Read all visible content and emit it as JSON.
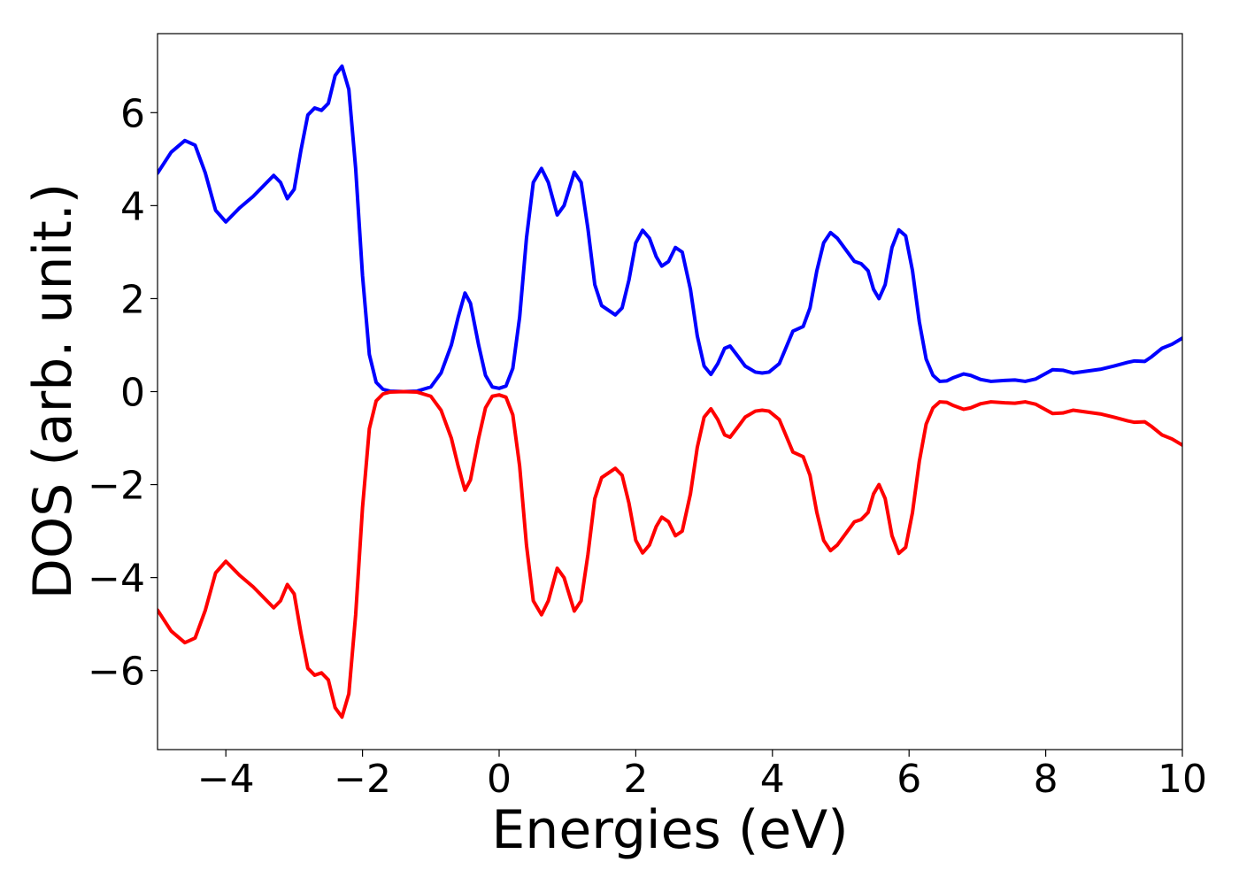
{
  "chart_data": {
    "type": "line",
    "title": "",
    "xlabel": "Energies (eV)",
    "ylabel": "DOS (arb. unit.)",
    "xlim": [
      -5,
      10
    ],
    "ylim": [
      -7.7,
      7.7
    ],
    "grid": false,
    "x_ticks": [
      -4,
      -2,
      0,
      2,
      4,
      6,
      8,
      10
    ],
    "x_tick_labels": [
      "−4",
      "−2",
      "0",
      "2",
      "4",
      "6",
      "8",
      "10"
    ],
    "y_ticks": [
      -6,
      -4,
      -2,
      0,
      2,
      4,
      6
    ],
    "y_tick_labels": [
      "−6",
      "−4",
      "−2",
      "0",
      "2",
      "4",
      "6"
    ],
    "series": [
      {
        "color": "#0000ff",
        "points": [
          [
            -5.0,
            4.7
          ],
          [
            -4.8,
            5.15
          ],
          [
            -4.6,
            5.4
          ],
          [
            -4.45,
            5.3
          ],
          [
            -4.3,
            4.7
          ],
          [
            -4.15,
            3.9
          ],
          [
            -4.0,
            3.65
          ],
          [
            -3.8,
            3.95
          ],
          [
            -3.6,
            4.2
          ],
          [
            -3.4,
            4.5
          ],
          [
            -3.3,
            4.65
          ],
          [
            -3.2,
            4.5
          ],
          [
            -3.1,
            4.15
          ],
          [
            -3.0,
            4.35
          ],
          [
            -2.9,
            5.2
          ],
          [
            -2.8,
            5.95
          ],
          [
            -2.7,
            6.1
          ],
          [
            -2.6,
            6.05
          ],
          [
            -2.5,
            6.2
          ],
          [
            -2.4,
            6.8
          ],
          [
            -2.3,
            7.0
          ],
          [
            -2.2,
            6.5
          ],
          [
            -2.1,
            4.8
          ],
          [
            -2.0,
            2.5
          ],
          [
            -1.9,
            0.8
          ],
          [
            -1.8,
            0.2
          ],
          [
            -1.7,
            0.05
          ],
          [
            -1.6,
            0.01
          ],
          [
            -1.4,
            0.0
          ],
          [
            -1.2,
            0.01
          ],
          [
            -1.0,
            0.1
          ],
          [
            -0.85,
            0.4
          ],
          [
            -0.7,
            1.0
          ],
          [
            -0.6,
            1.6
          ],
          [
            -0.5,
            2.12
          ],
          [
            -0.42,
            1.9
          ],
          [
            -0.3,
            1.0
          ],
          [
            -0.2,
            0.35
          ],
          [
            -0.1,
            0.1
          ],
          [
            0.0,
            0.07
          ],
          [
            0.1,
            0.12
          ],
          [
            0.2,
            0.5
          ],
          [
            0.3,
            1.6
          ],
          [
            0.4,
            3.3
          ],
          [
            0.5,
            4.5
          ],
          [
            0.62,
            4.8
          ],
          [
            0.72,
            4.5
          ],
          [
            0.85,
            3.8
          ],
          [
            0.95,
            4.0
          ],
          [
            1.1,
            4.72
          ],
          [
            1.2,
            4.5
          ],
          [
            1.3,
            3.5
          ],
          [
            1.4,
            2.3
          ],
          [
            1.5,
            1.85
          ],
          [
            1.6,
            1.75
          ],
          [
            1.7,
            1.65
          ],
          [
            1.8,
            1.8
          ],
          [
            1.9,
            2.4
          ],
          [
            2.0,
            3.2
          ],
          [
            2.1,
            3.47
          ],
          [
            2.2,
            3.3
          ],
          [
            2.3,
            2.9
          ],
          [
            2.38,
            2.7
          ],
          [
            2.48,
            2.8
          ],
          [
            2.58,
            3.1
          ],
          [
            2.68,
            3.0
          ],
          [
            2.8,
            2.2
          ],
          [
            2.9,
            1.2
          ],
          [
            3.0,
            0.55
          ],
          [
            3.1,
            0.37
          ],
          [
            3.2,
            0.6
          ],
          [
            3.3,
            0.93
          ],
          [
            3.38,
            0.98
          ],
          [
            3.5,
            0.75
          ],
          [
            3.6,
            0.55
          ],
          [
            3.75,
            0.42
          ],
          [
            3.85,
            0.4
          ],
          [
            3.95,
            0.42
          ],
          [
            4.1,
            0.6
          ],
          [
            4.2,
            0.95
          ],
          [
            4.3,
            1.3
          ],
          [
            4.45,
            1.4
          ],
          [
            4.55,
            1.8
          ],
          [
            4.65,
            2.6
          ],
          [
            4.75,
            3.2
          ],
          [
            4.85,
            3.42
          ],
          [
            4.95,
            3.3
          ],
          [
            5.1,
            3.0
          ],
          [
            5.2,
            2.8
          ],
          [
            5.3,
            2.75
          ],
          [
            5.4,
            2.6
          ],
          [
            5.48,
            2.2
          ],
          [
            5.56,
            2.0
          ],
          [
            5.65,
            2.3
          ],
          [
            5.75,
            3.1
          ],
          [
            5.85,
            3.48
          ],
          [
            5.95,
            3.35
          ],
          [
            6.05,
            2.6
          ],
          [
            6.15,
            1.5
          ],
          [
            6.25,
            0.7
          ],
          [
            6.35,
            0.35
          ],
          [
            6.45,
            0.22
          ],
          [
            6.55,
            0.23
          ],
          [
            6.65,
            0.3
          ],
          [
            6.8,
            0.38
          ],
          [
            6.9,
            0.35
          ],
          [
            7.05,
            0.26
          ],
          [
            7.2,
            0.22
          ],
          [
            7.4,
            0.24
          ],
          [
            7.55,
            0.25
          ],
          [
            7.7,
            0.22
          ],
          [
            7.85,
            0.27
          ],
          [
            7.95,
            0.35
          ],
          [
            8.1,
            0.47
          ],
          [
            8.25,
            0.46
          ],
          [
            8.4,
            0.4
          ],
          [
            8.6,
            0.44
          ],
          [
            8.8,
            0.48
          ],
          [
            9.0,
            0.55
          ],
          [
            9.2,
            0.63
          ],
          [
            9.3,
            0.66
          ],
          [
            9.45,
            0.65
          ],
          [
            9.55,
            0.75
          ],
          [
            9.7,
            0.93
          ],
          [
            9.85,
            1.02
          ],
          [
            10.0,
            1.15
          ]
        ]
      },
      {
        "color": "#ff0000",
        "points": [
          [
            -5.0,
            -4.7
          ],
          [
            -4.8,
            -5.15
          ],
          [
            -4.6,
            -5.4
          ],
          [
            -4.45,
            -5.3
          ],
          [
            -4.3,
            -4.7
          ],
          [
            -4.15,
            -3.9
          ],
          [
            -4.0,
            -3.65
          ],
          [
            -3.8,
            -3.95
          ],
          [
            -3.6,
            -4.2
          ],
          [
            -3.4,
            -4.5
          ],
          [
            -3.3,
            -4.65
          ],
          [
            -3.2,
            -4.5
          ],
          [
            -3.1,
            -4.15
          ],
          [
            -3.0,
            -4.35
          ],
          [
            -2.9,
            -5.2
          ],
          [
            -2.8,
            -5.95
          ],
          [
            -2.7,
            -6.1
          ],
          [
            -2.6,
            -6.05
          ],
          [
            -2.5,
            -6.2
          ],
          [
            -2.4,
            -6.8
          ],
          [
            -2.3,
            -7.0
          ],
          [
            -2.2,
            -6.5
          ],
          [
            -2.1,
            -4.8
          ],
          [
            -2.0,
            -2.5
          ],
          [
            -1.9,
            -0.8
          ],
          [
            -1.8,
            -0.2
          ],
          [
            -1.7,
            -0.05
          ],
          [
            -1.6,
            -0.01
          ],
          [
            -1.4,
            0.0
          ],
          [
            -1.2,
            -0.01
          ],
          [
            -1.0,
            -0.1
          ],
          [
            -0.85,
            -0.4
          ],
          [
            -0.7,
            -1.0
          ],
          [
            -0.6,
            -1.6
          ],
          [
            -0.5,
            -2.12
          ],
          [
            -0.42,
            -1.9
          ],
          [
            -0.3,
            -1.0
          ],
          [
            -0.2,
            -0.35
          ],
          [
            -0.1,
            -0.1
          ],
          [
            0.0,
            -0.07
          ],
          [
            0.1,
            -0.12
          ],
          [
            0.2,
            -0.5
          ],
          [
            0.3,
            -1.6
          ],
          [
            0.4,
            -3.3
          ],
          [
            0.5,
            -4.5
          ],
          [
            0.62,
            -4.8
          ],
          [
            0.72,
            -4.5
          ],
          [
            0.85,
            -3.8
          ],
          [
            0.95,
            -4.0
          ],
          [
            1.1,
            -4.72
          ],
          [
            1.2,
            -4.5
          ],
          [
            1.3,
            -3.5
          ],
          [
            1.4,
            -2.3
          ],
          [
            1.5,
            -1.85
          ],
          [
            1.6,
            -1.75
          ],
          [
            1.7,
            -1.65
          ],
          [
            1.8,
            -1.8
          ],
          [
            1.9,
            -2.4
          ],
          [
            2.0,
            -3.2
          ],
          [
            2.1,
            -3.47
          ],
          [
            2.2,
            -3.3
          ],
          [
            2.3,
            -2.9
          ],
          [
            2.38,
            -2.7
          ],
          [
            2.48,
            -2.8
          ],
          [
            2.58,
            -3.1
          ],
          [
            2.68,
            -3.0
          ],
          [
            2.8,
            -2.2
          ],
          [
            2.9,
            -1.2
          ],
          [
            3.0,
            -0.55
          ],
          [
            3.1,
            -0.37
          ],
          [
            3.2,
            -0.6
          ],
          [
            3.3,
            -0.93
          ],
          [
            3.38,
            -0.98
          ],
          [
            3.5,
            -0.75
          ],
          [
            3.6,
            -0.55
          ],
          [
            3.75,
            -0.42
          ],
          [
            3.85,
            -0.4
          ],
          [
            3.95,
            -0.42
          ],
          [
            4.1,
            -0.6
          ],
          [
            4.2,
            -0.95
          ],
          [
            4.3,
            -1.3
          ],
          [
            4.45,
            -1.4
          ],
          [
            4.55,
            -1.8
          ],
          [
            4.65,
            -2.6
          ],
          [
            4.75,
            -3.2
          ],
          [
            4.85,
            -3.42
          ],
          [
            4.95,
            -3.3
          ],
          [
            5.1,
            -3.0
          ],
          [
            5.2,
            -2.8
          ],
          [
            5.3,
            -2.75
          ],
          [
            5.4,
            -2.6
          ],
          [
            5.48,
            -2.2
          ],
          [
            5.56,
            -2.0
          ],
          [
            5.65,
            -2.3
          ],
          [
            5.75,
            -3.1
          ],
          [
            5.85,
            -3.48
          ],
          [
            5.95,
            -3.35
          ],
          [
            6.05,
            -2.6
          ],
          [
            6.15,
            -1.5
          ],
          [
            6.25,
            -0.7
          ],
          [
            6.35,
            -0.35
          ],
          [
            6.45,
            -0.22
          ],
          [
            6.55,
            -0.23
          ],
          [
            6.65,
            -0.3
          ],
          [
            6.8,
            -0.38
          ],
          [
            6.9,
            -0.35
          ],
          [
            7.05,
            -0.26
          ],
          [
            7.2,
            -0.22
          ],
          [
            7.4,
            -0.24
          ],
          [
            7.55,
            -0.25
          ],
          [
            7.7,
            -0.22
          ],
          [
            7.85,
            -0.27
          ],
          [
            7.95,
            -0.35
          ],
          [
            8.1,
            -0.47
          ],
          [
            8.25,
            -0.46
          ],
          [
            8.4,
            -0.4
          ],
          [
            8.6,
            -0.44
          ],
          [
            8.8,
            -0.48
          ],
          [
            9.0,
            -0.55
          ],
          [
            9.2,
            -0.63
          ],
          [
            9.3,
            -0.66
          ],
          [
            9.45,
            -0.65
          ],
          [
            9.55,
            -0.75
          ],
          [
            9.7,
            -0.93
          ],
          [
            9.85,
            -1.02
          ],
          [
            10.0,
            -1.15
          ]
        ]
      }
    ]
  }
}
